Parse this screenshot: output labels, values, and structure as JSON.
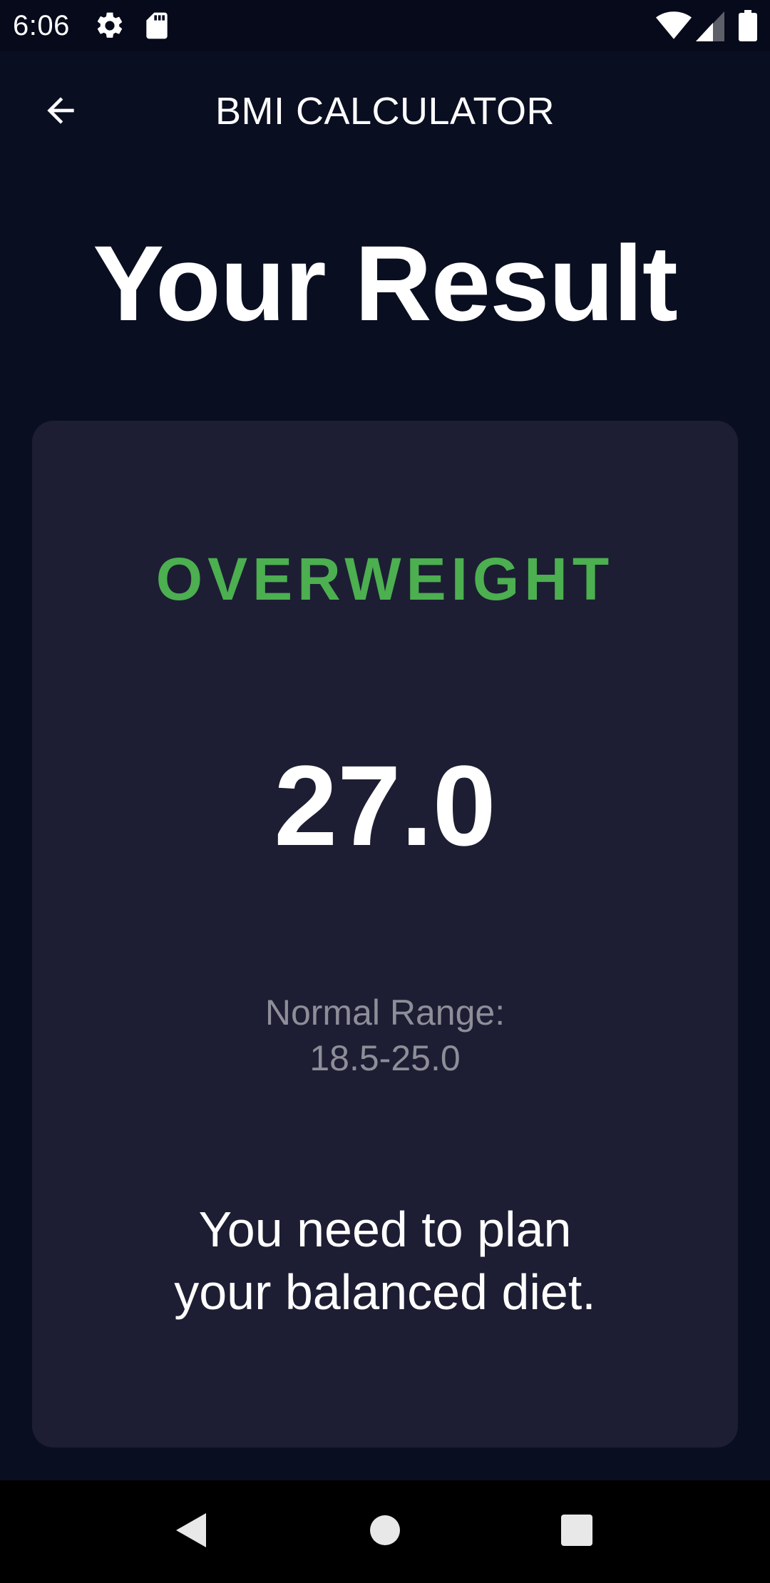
{
  "status_bar": {
    "time": "6:06",
    "icons": [
      "gear-icon",
      "sd-card-icon",
      "wifi-icon",
      "signal-icon",
      "battery-icon"
    ]
  },
  "app_bar": {
    "title": "BMI CALCULATOR",
    "back_icon": "arrow-back-icon"
  },
  "headline": "Your Result",
  "result": {
    "category": "OVERWEIGHT",
    "bmi_value": "27.0",
    "range_label": "Normal Range:",
    "range_value": "18.5-25.0",
    "advice_line1": "You need to plan",
    "advice_line2": "your balanced diet."
  },
  "nav_bar": {
    "icons": [
      "back-triangle-icon",
      "home-circle-icon",
      "recents-square-icon"
    ]
  },
  "colors": {
    "background": "#0A0E21",
    "card": "#1D1E33",
    "category": "#4CAF50",
    "muted_text": "#8D8E98",
    "text": "#FFFFFF"
  }
}
